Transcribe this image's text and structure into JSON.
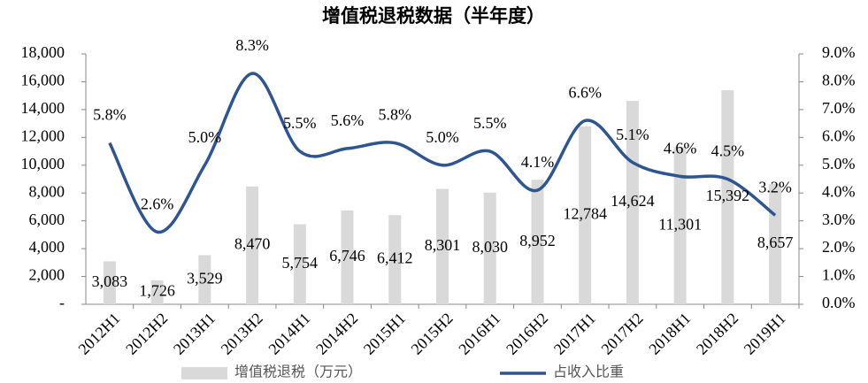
{
  "chart_data": {
    "type": "bar-line",
    "title": "增值税退税数据（半年度）",
    "categories": [
      "2012H1",
      "2012H2",
      "2013H1",
      "2013H2",
      "2014H1",
      "2014H2",
      "2015H1",
      "2015H2",
      "2016H1",
      "2016H2",
      "2017H1",
      "2017H2",
      "2018H1",
      "2018H2",
      "2019H1"
    ],
    "series": [
      {
        "name": "增值税退税（万元）",
        "type": "bar",
        "color": "#d9d9d9",
        "values": [
          3083,
          1726,
          3529,
          8470,
          5754,
          6746,
          6412,
          8301,
          8030,
          8952,
          12784,
          14624,
          11301,
          15392,
          8657
        ],
        "value_labels": [
          "3,083",
          "1,726",
          "3,529",
          "8,470",
          "5,754",
          "6,746",
          "6,412",
          "8,301",
          "8,030",
          "8,952",
          "12,784",
          "14,624",
          "11,301",
          "15,392",
          "8,657"
        ]
      },
      {
        "name": "占收入比重",
        "type": "line",
        "axis": "y2",
        "color": "#2f5591",
        "values": [
          5.8,
          2.6,
          5.0,
          8.3,
          5.5,
          5.6,
          5.8,
          5.0,
          5.5,
          4.1,
          6.6,
          5.1,
          4.6,
          4.5,
          3.2
        ],
        "value_labels": [
          "5.8%",
          "2.6%",
          "5.0%",
          "8.3%",
          "5.5%",
          "5.6%",
          "5.8%",
          "5.0%",
          "5.5%",
          "4.1%",
          "6.6%",
          "5.1%",
          "4.6%",
          "4.5%",
          "3.2%"
        ]
      }
    ],
    "ylim": [
      0,
      18000
    ],
    "yticks": [
      {
        "value": 0,
        "label": "-"
      },
      {
        "value": 2000,
        "label": "2,000"
      },
      {
        "value": 4000,
        "label": "4,000"
      },
      {
        "value": 6000,
        "label": "6,000"
      },
      {
        "value": 8000,
        "label": "8,000"
      },
      {
        "value": 10000,
        "label": "10,000"
      },
      {
        "value": 12000,
        "label": "12,000"
      },
      {
        "value": 14000,
        "label": "14,000"
      },
      {
        "value": 16000,
        "label": "16,000"
      },
      {
        "value": 18000,
        "label": "18,000"
      }
    ],
    "y2lim": [
      0,
      9
    ],
    "y2ticks": [
      {
        "value": 0,
        "label": "0.0%"
      },
      {
        "value": 1,
        "label": "1.0%"
      },
      {
        "value": 2,
        "label": "2.0%"
      },
      {
        "value": 3,
        "label": "3.0%"
      },
      {
        "value": 4,
        "label": "4.0%"
      },
      {
        "value": 5,
        "label": "5.0%"
      },
      {
        "value": 6,
        "label": "6.0%"
      },
      {
        "value": 7,
        "label": "7.0%"
      },
      {
        "value": 8,
        "label": "8.0%"
      },
      {
        "value": 9,
        "label": "9.0%"
      }
    ],
    "grid": false,
    "legend": "bottom"
  }
}
